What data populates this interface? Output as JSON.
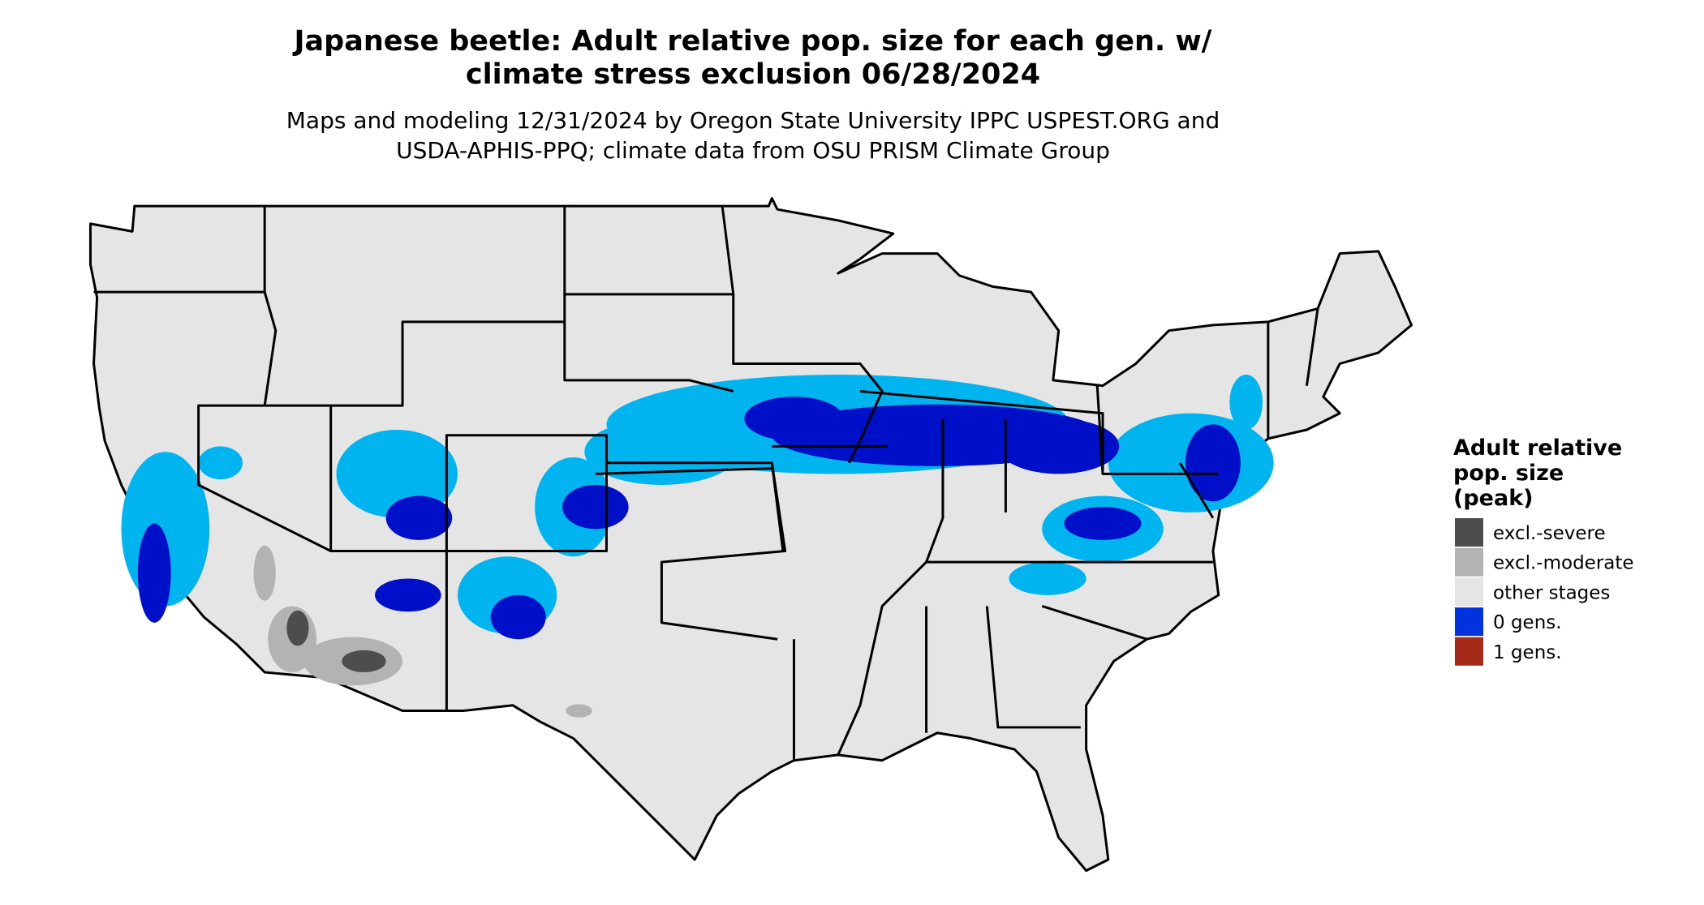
{
  "title": {
    "line1": "Japanese beetle: Adult relative pop. size for each gen. w/",
    "line2": "climate stress exclusion 06/28/2024"
  },
  "subtitle": {
    "line1": "Maps and modeling 12/31/2024 by Oregon State University IPPC USPEST.ORG and",
    "line2": "USDA-APHIS-PPQ; climate data from OSU PRISM Climate Group"
  },
  "legend": {
    "title": [
      "Adult relative",
      "pop. size",
      "(peak)"
    ],
    "items": [
      {
        "label": "excl.-severe",
        "color": "#4d4d4d"
      },
      {
        "label": "excl.-moderate",
        "color": "#b3b3b3"
      },
      {
        "label": "other stages",
        "color": "#e5e5e5"
      },
      {
        "label": "0 gens.",
        "color": "#0033dd"
      },
      {
        "label": "1 gens.",
        "color": "#a52a1a"
      }
    ]
  }
}
